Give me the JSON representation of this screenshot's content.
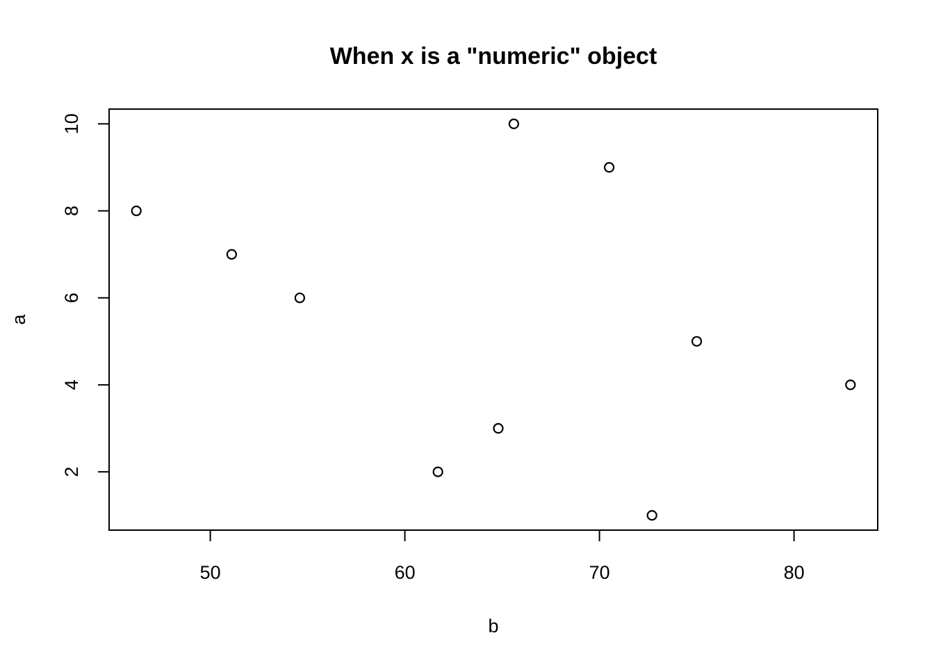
{
  "chart_data": {
    "type": "scatter",
    "title": "When x is a \"numeric\" object",
    "xlabel": "b",
    "ylabel": "a",
    "xlim": [
      44.8,
      84.3
    ],
    "ylim": [
      0.66,
      10.34
    ],
    "xticks": [
      50,
      60,
      70,
      80
    ],
    "yticks": [
      2,
      4,
      6,
      8,
      10
    ],
    "grid": false,
    "marker": "open-circle",
    "points": [
      {
        "x": 46.2,
        "y": 8
      },
      {
        "x": 51.1,
        "y": 7
      },
      {
        "x": 54.6,
        "y": 6
      },
      {
        "x": 61.7,
        "y": 2
      },
      {
        "x": 64.8,
        "y": 3
      },
      {
        "x": 65.6,
        "y": 10
      },
      {
        "x": 70.5,
        "y": 9
      },
      {
        "x": 72.7,
        "y": 1
      },
      {
        "x": 75.0,
        "y": 5
      },
      {
        "x": 82.9,
        "y": 4
      }
    ]
  }
}
